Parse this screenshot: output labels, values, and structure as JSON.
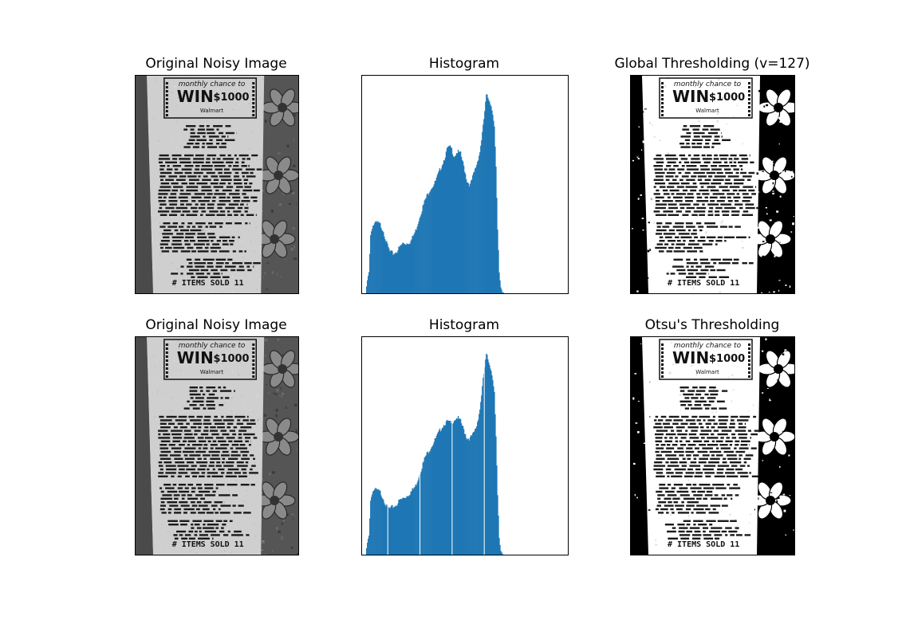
{
  "figure": {
    "panels": [
      {
        "title": "Original Noisy Image"
      },
      {
        "title": "Histogram"
      },
      {
        "title": "Global Thresholding (v=127)"
      },
      {
        "title": "Original Noisy Image"
      },
      {
        "title": "Histogram"
      },
      {
        "title": "Otsu's Thresholding"
      }
    ]
  },
  "receipt": {
    "headline_small": "monthly chance to",
    "headline_big": "WIN",
    "headline_amount": "$1000",
    "brand": "Walmart",
    "footer": "# ITEMS SOLD 11"
  },
  "colors": {
    "histogram_bar": "#1f77b4",
    "frame": "#000000",
    "receipt_paper_gray": "#cfcfcf",
    "background_gray": "#555555"
  },
  "chart_data": [
    {
      "type": "bar",
      "title": "Histogram",
      "x_range": [
        0,
        256
      ],
      "y_range": [
        0,
        1
      ],
      "grid": false,
      "x_points": [
        0,
        4,
        8,
        10,
        12,
        14,
        18,
        22,
        26,
        30,
        34,
        38,
        42,
        46,
        50,
        54,
        60,
        66,
        72,
        78,
        84,
        90,
        94,
        98,
        102,
        106,
        110,
        114,
        118,
        122,
        126,
        130,
        134,
        138,
        142,
        146,
        150,
        154,
        158,
        162,
        164,
        166,
        168,
        170,
        172,
        174,
        176,
        178,
        180,
        182,
        184,
        188,
        192,
        196,
        200,
        204,
        210,
        216,
        256
      ],
      "values": [
        0,
        0,
        0.11,
        0.28,
        0.32,
        0.33,
        0.34,
        0.33,
        0.3,
        0.24,
        0.2,
        0.19,
        0.2,
        0.22,
        0.24,
        0.24,
        0.25,
        0.3,
        0.38,
        0.45,
        0.5,
        0.53,
        0.57,
        0.61,
        0.65,
        0.7,
        0.7,
        0.66,
        0.68,
        0.67,
        0.61,
        0.54,
        0.52,
        0.57,
        0.62,
        0.68,
        0.8,
        0.95,
        0.93,
        0.87,
        0.8,
        0.6,
        0.3,
        0.1,
        0.03,
        0.01,
        0.01,
        0,
        0,
        0,
        0,
        0,
        0,
        0,
        0,
        0,
        0,
        0,
        0
      ]
    },
    {
      "type": "bar",
      "title": "Histogram",
      "x_range": [
        0,
        256
      ],
      "y_range": [
        0,
        1
      ],
      "grid": false,
      "x_points": [
        0,
        4,
        8,
        10,
        12,
        14,
        18,
        22,
        26,
        30,
        34,
        38,
        42,
        46,
        50,
        54,
        60,
        66,
        72,
        78,
        84,
        90,
        94,
        98,
        102,
        106,
        110,
        114,
        118,
        122,
        126,
        130,
        134,
        138,
        142,
        146,
        150,
        154,
        158,
        162,
        164,
        166,
        168,
        170,
        172,
        174,
        176,
        178,
        180,
        182,
        184,
        188,
        192,
        196,
        200,
        204,
        210,
        216,
        256
      ],
      "values": [
        0,
        0,
        0.1,
        0.26,
        0.3,
        0.31,
        0.31,
        0.3,
        0.27,
        0.23,
        0.22,
        0.23,
        0.24,
        0.26,
        0.27,
        0.28,
        0.3,
        0.33,
        0.4,
        0.47,
        0.51,
        0.55,
        0.58,
        0.61,
        0.63,
        0.64,
        0.63,
        0.65,
        0.66,
        0.64,
        0.6,
        0.56,
        0.56,
        0.58,
        0.62,
        0.7,
        0.84,
        0.96,
        0.92,
        0.85,
        0.78,
        0.56,
        0.28,
        0.08,
        0.02,
        0.01,
        0,
        0,
        0,
        0,
        0,
        0,
        0,
        0,
        0,
        0,
        0,
        0,
        0
      ],
      "gap_lines_x": [
        32,
        72,
        112,
        152
      ]
    }
  ]
}
